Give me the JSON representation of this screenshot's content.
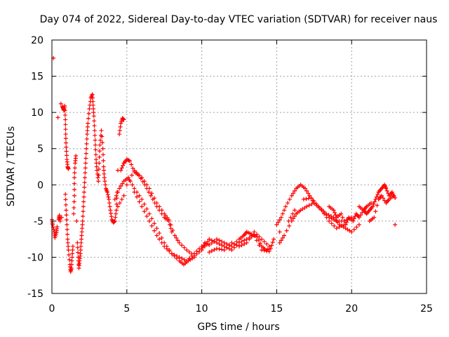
{
  "chart_data": {
    "type": "scatter",
    "title": "Day 074 of 2022, Sidereal Day-to-day VTEC variation (SDTVAR) for receiver naus",
    "xlabel": "GPS time / hours",
    "ylabel": "SDTVAR / TECUs",
    "xlim": [
      0,
      25
    ],
    "ylim": [
      -15,
      20
    ],
    "xticks": [
      0,
      5,
      10,
      15,
      20,
      25
    ],
    "yticks": [
      -15,
      -10,
      -5,
      0,
      5,
      10,
      15,
      20
    ],
    "grid": true,
    "marker": "+",
    "series_color": "#ff0000",
    "series": [
      {
        "name": "SDTVAR",
        "points": [
          [
            0.1,
            17.5
          ],
          [
            0.0,
            -4.8
          ],
          [
            0.05,
            -5.5
          ],
          [
            0.15,
            -6.5
          ],
          [
            0.2,
            -7.3
          ],
          [
            0.3,
            -6.6
          ],
          [
            0.35,
            -5.8
          ],
          [
            0.4,
            9.3
          ],
          [
            0.45,
            -4.8
          ],
          [
            0.5,
            -4.2
          ],
          [
            0.55,
            -5.0
          ],
          [
            0.6,
            11.2
          ],
          [
            0.65,
            -4.5
          ],
          [
            0.7,
            10.8
          ],
          [
            0.75,
            10.6
          ],
          [
            0.8,
            10.3
          ],
          [
            0.85,
            10.9
          ],
          [
            0.9,
            9.0
          ],
          [
            0.92,
            7.0
          ],
          [
            0.95,
            5.2
          ],
          [
            1.0,
            3.5
          ],
          [
            1.05,
            2.5
          ],
          [
            1.1,
            2.2
          ],
          [
            0.9,
            -1.3
          ],
          [
            0.95,
            -3.5
          ],
          [
            1.0,
            -5.5
          ],
          [
            1.05,
            -7.5
          ],
          [
            1.1,
            -9.0
          ],
          [
            1.2,
            -11.0
          ],
          [
            1.25,
            -12.0
          ],
          [
            1.3,
            -11.5
          ],
          [
            1.35,
            -10.0
          ],
          [
            1.4,
            -8.5
          ],
          [
            1.45,
            -4.0
          ],
          [
            1.5,
            -1.5
          ],
          [
            1.5,
            1.0
          ],
          [
            1.55,
            3.0
          ],
          [
            1.6,
            4.0
          ],
          [
            1.65,
            -5.0
          ],
          [
            1.7,
            -8.0
          ],
          [
            1.75,
            -10.0
          ],
          [
            1.8,
            -11.5
          ],
          [
            1.85,
            -10.5
          ],
          [
            1.9,
            -9.5
          ],
          [
            1.95,
            -8.0
          ],
          [
            2.0,
            -6.5
          ],
          [
            2.05,
            -5.0
          ],
          [
            2.1,
            -3.0
          ],
          [
            2.15,
            -1.0
          ],
          [
            2.2,
            1.0
          ],
          [
            2.25,
            3.0
          ],
          [
            2.3,
            5.0
          ],
          [
            2.35,
            7.0
          ],
          [
            2.4,
            8.5
          ],
          [
            2.5,
            10.5
          ],
          [
            2.6,
            12.0
          ],
          [
            2.7,
            12.5
          ],
          [
            2.75,
            11.0
          ],
          [
            2.8,
            9.5
          ],
          [
            2.85,
            7.5
          ],
          [
            2.9,
            5.5
          ],
          [
            2.95,
            3.5
          ],
          [
            3.0,
            2.0
          ],
          [
            3.1,
            0.5
          ],
          [
            3.15,
            3.0
          ],
          [
            3.2,
            5.5
          ],
          [
            3.3,
            7.5
          ],
          [
            3.4,
            5.0
          ],
          [
            3.45,
            2.5
          ],
          [
            3.5,
            1.0
          ],
          [
            3.6,
            -0.5
          ],
          [
            3.7,
            -1.0
          ],
          [
            3.8,
            -2.0
          ],
          [
            3.9,
            -3.5
          ],
          [
            4.0,
            -4.8
          ],
          [
            4.1,
            -5.2
          ],
          [
            4.2,
            -5.0
          ],
          [
            4.3,
            -3.5
          ],
          [
            4.35,
            -1.0
          ],
          [
            4.4,
            2.0
          ],
          [
            4.5,
            7.0
          ],
          [
            4.6,
            8.5
          ],
          [
            4.7,
            9.2
          ],
          [
            4.8,
            9.0
          ],
          [
            4.6,
            2.0
          ],
          [
            4.8,
            3.0
          ],
          [
            5.0,
            3.5
          ],
          [
            5.2,
            3.3
          ],
          [
            5.5,
            1.8
          ],
          [
            5.8,
            1.3
          ],
          [
            6.2,
            0.0
          ],
          [
            6.6,
            -1.5
          ],
          [
            7.0,
            -3.0
          ],
          [
            7.5,
            -4.5
          ],
          [
            7.8,
            -5.0
          ],
          [
            8.0,
            -6.5
          ],
          [
            4.2,
            -2.0
          ],
          [
            4.5,
            -0.5
          ],
          [
            4.8,
            0.5
          ],
          [
            5.1,
            1.0
          ],
          [
            5.5,
            -0.5
          ],
          [
            6.0,
            -2.0
          ],
          [
            6.5,
            -4.0
          ],
          [
            7.0,
            -6.0
          ],
          [
            7.5,
            -8.0
          ],
          [
            8.0,
            -9.5
          ],
          [
            8.5,
            -10.5
          ],
          [
            8.8,
            -11.0
          ],
          [
            9.1,
            -10.5
          ],
          [
            9.5,
            -10.0
          ],
          [
            4.4,
            -3.0
          ],
          [
            4.8,
            -1.5
          ],
          [
            5.5,
            -1.0
          ],
          [
            6.0,
            -3.0
          ],
          [
            6.5,
            -5.0
          ],
          [
            7.0,
            -7.0
          ],
          [
            7.5,
            -8.5
          ],
          [
            8.0,
            -9.5
          ],
          [
            8.5,
            -10.0
          ],
          [
            9.0,
            -10.5
          ],
          [
            9.5,
            -9.5
          ],
          [
            10.0,
            -8.5
          ],
          [
            5.0,
            0.0
          ],
          [
            5.5,
            2.0
          ],
          [
            6.0,
            1.0
          ],
          [
            6.5,
            -0.5
          ],
          [
            7.0,
            -2.5
          ],
          [
            7.5,
            -4.0
          ],
          [
            7.8,
            -4.8
          ],
          [
            8.2,
            -7.0
          ],
          [
            8.5,
            -8.0
          ],
          [
            9.0,
            -9.0
          ],
          [
            9.5,
            -9.8
          ],
          [
            10.0,
            -9.0
          ],
          [
            10.2,
            -8.0
          ],
          [
            10.5,
            -8.3
          ],
          [
            11.0,
            -7.5
          ],
          [
            11.5,
            -8.0
          ],
          [
            12.0,
            -8.5
          ],
          [
            12.5,
            -7.5
          ],
          [
            12.8,
            -7.0
          ],
          [
            13.0,
            -6.5
          ],
          [
            13.3,
            -6.8
          ],
          [
            13.7,
            -7.2
          ],
          [
            14.0,
            -8.5
          ],
          [
            14.3,
            -9.0
          ],
          [
            14.6,
            -8.8
          ],
          [
            14.8,
            -7.5
          ],
          [
            10.2,
            -8.5
          ],
          [
            10.5,
            -7.5
          ],
          [
            11.0,
            -8.0
          ],
          [
            11.5,
            -8.5
          ],
          [
            12.0,
            -9.0
          ],
          [
            12.5,
            -8.0
          ],
          [
            13.0,
            -7.5
          ],
          [
            13.5,
            -7.0
          ],
          [
            14.0,
            -9.0
          ],
          [
            14.5,
            -9.2
          ],
          [
            10.5,
            -9.3
          ],
          [
            11.0,
            -8.8
          ],
          [
            11.5,
            -9.0
          ],
          [
            12.0,
            -8.0
          ],
          [
            12.5,
            -8.5
          ],
          [
            13.0,
            -8.0
          ],
          [
            13.5,
            -6.5
          ],
          [
            14.0,
            -7.5
          ],
          [
            14.5,
            -8.5
          ],
          [
            15.2,
            -8.0
          ],
          [
            15.5,
            -7.0
          ],
          [
            16.0,
            -5.0
          ],
          [
            16.3,
            -4.0
          ],
          [
            16.6,
            -3.5
          ],
          [
            17.0,
            -3.0
          ],
          [
            17.5,
            -2.5
          ],
          [
            18.0,
            -3.5
          ],
          [
            18.5,
            -5.0
          ],
          [
            19.0,
            -6.0
          ],
          [
            19.5,
            -5.5
          ],
          [
            15.0,
            -5.5
          ],
          [
            15.3,
            -4.5
          ],
          [
            15.6,
            -3.0
          ],
          [
            16.0,
            -1.5
          ],
          [
            16.3,
            -0.5
          ],
          [
            16.6,
            0.0
          ],
          [
            16.9,
            -0.5
          ],
          [
            17.2,
            -1.5
          ],
          [
            17.5,
            -2.5
          ],
          [
            18.0,
            -3.5
          ],
          [
            18.5,
            -4.5
          ],
          [
            19.0,
            -5.0
          ],
          [
            19.5,
            -5.0
          ],
          [
            20.0,
            -4.5
          ],
          [
            15.2,
            -6.5
          ],
          [
            15.8,
            -5.0
          ],
          [
            16.2,
            -3.5
          ],
          [
            16.8,
            -2.0
          ],
          [
            17.3,
            -1.8
          ],
          [
            17.8,
            -3.0
          ],
          [
            18.3,
            -4.0
          ],
          [
            18.8,
            -4.5
          ],
          [
            19.2,
            -5.5
          ],
          [
            19.6,
            -6.0
          ],
          [
            20.0,
            -6.5
          ],
          [
            20.5,
            -5.5
          ],
          [
            18.5,
            -3.0
          ],
          [
            18.8,
            -3.5
          ],
          [
            19.0,
            -4.5
          ],
          [
            19.3,
            -4.0
          ],
          [
            19.6,
            -5.5
          ],
          [
            19.8,
            -4.5
          ],
          [
            20.1,
            -5.0
          ],
          [
            20.3,
            -4.0
          ],
          [
            20.5,
            -4.5
          ],
          [
            20.8,
            -3.5
          ],
          [
            21.0,
            -3.0
          ],
          [
            21.3,
            -2.5
          ],
          [
            20.5,
            -3.0
          ],
          [
            20.8,
            -3.5
          ],
          [
            21.0,
            -4.0
          ],
          [
            21.2,
            -3.5
          ],
          [
            21.4,
            -3.0
          ],
          [
            21.6,
            -2.0
          ],
          [
            21.8,
            -1.0
          ],
          [
            22.0,
            -0.5
          ],
          [
            22.2,
            0.0
          ],
          [
            22.3,
            -0.5
          ],
          [
            22.5,
            -1.5
          ],
          [
            22.7,
            -1.0
          ],
          [
            22.9,
            -1.8
          ],
          [
            21.2,
            -5.0
          ],
          [
            21.5,
            -4.5
          ],
          [
            21.8,
            -2.0
          ],
          [
            22.0,
            -1.5
          ],
          [
            22.3,
            -2.5
          ],
          [
            22.5,
            -2.0
          ],
          [
            22.8,
            -1.5
          ],
          [
            22.9,
            -5.5
          ]
        ]
      }
    ]
  }
}
